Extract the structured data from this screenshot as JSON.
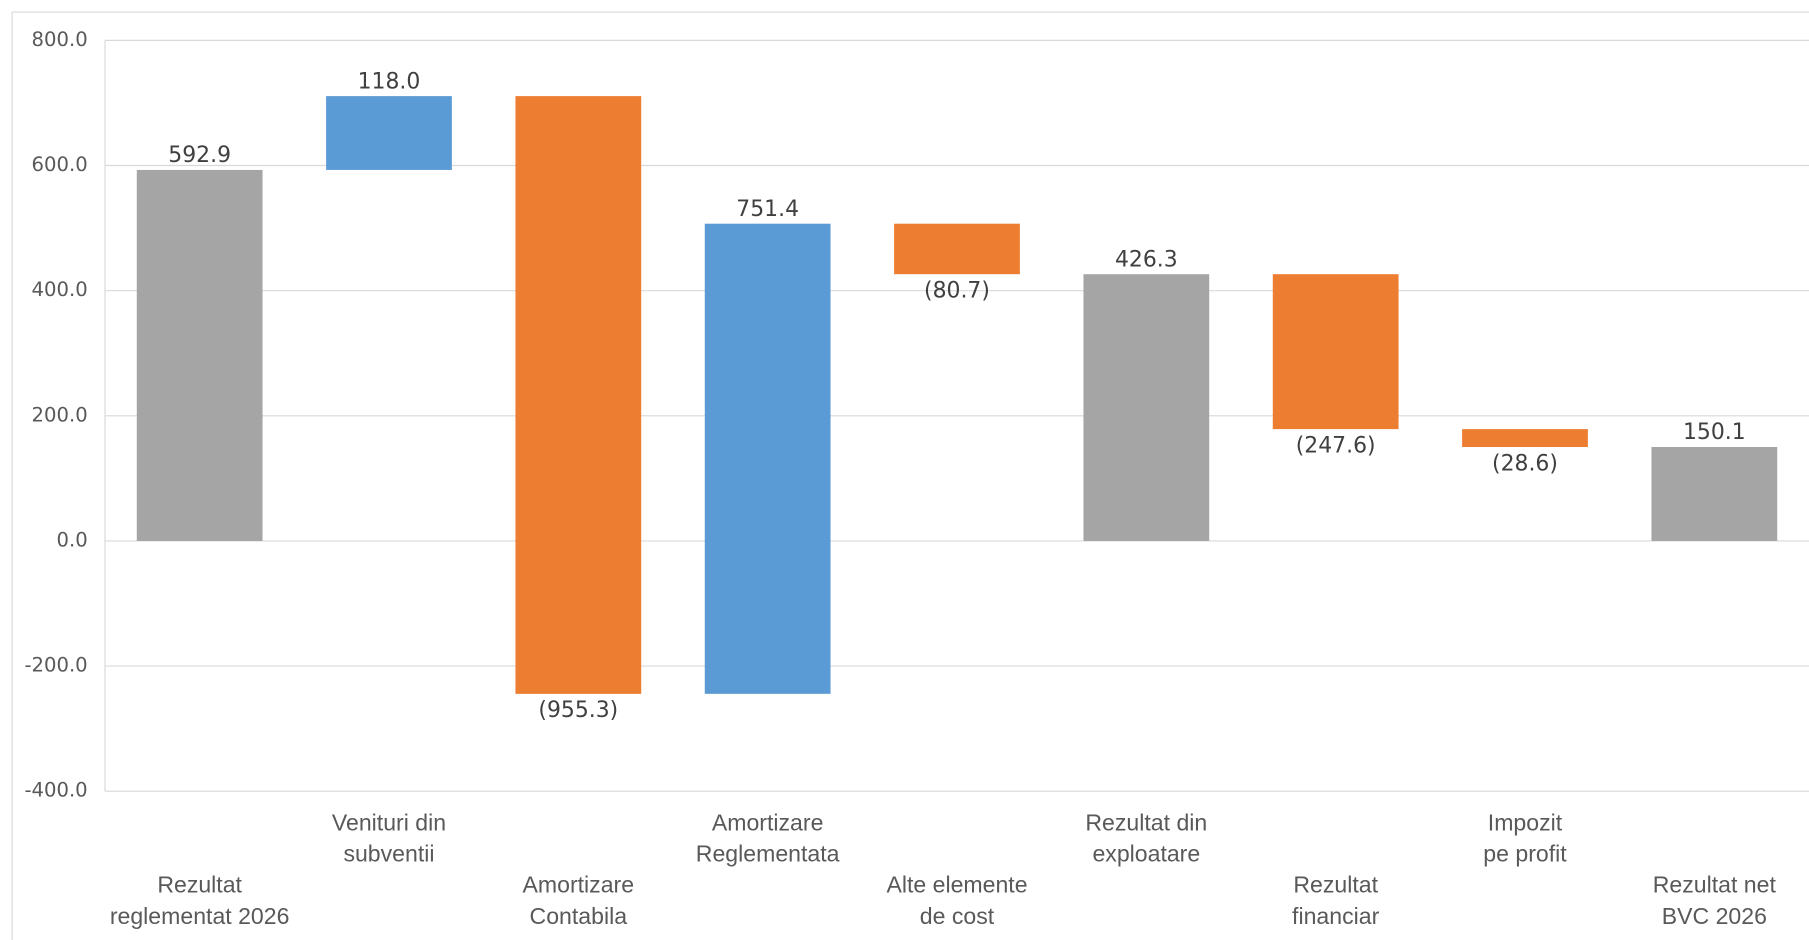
{
  "chart_data": {
    "type": "waterfall",
    "categories": [
      "Rezultat\nreglementat 2026",
      "Venituri din\nsubventii",
      "Amortizare\nContabila",
      "Amortizare\nReglementata",
      "Alte elemente\nde cost",
      "Rezultat din\nexploatare",
      "Rezultat\nfinanciar",
      "Impozit\npe profit",
      "Rezultat net\nBVC 2026"
    ],
    "values": [
      592.9,
      118.0,
      -955.3,
      751.4,
      -80.7,
      426.3,
      -247.6,
      -28.6,
      150.1
    ],
    "value_labels": [
      "592.9",
      "118.0",
      "(955.3)",
      "751.4",
      "(80.7)",
      "426.3",
      "(247.6)",
      "(28.6)",
      "150.1"
    ],
    "measure": [
      "total",
      "relative",
      "relative",
      "relative",
      "relative",
      "total",
      "relative",
      "relative",
      "total"
    ],
    "colors": {
      "increase": "#5b9bd5",
      "decrease": "#ed7d31",
      "total": "#a5a5a5"
    },
    "ylim": [
      -400,
      800
    ],
    "yticks": [
      {
        "value": -400,
        "label": "-400.0"
      },
      {
        "value": -200,
        "label": "-200.0"
      },
      {
        "value": 0,
        "label": "0.0"
      },
      {
        "value": 200,
        "label": "200.0"
      },
      {
        "value": 400,
        "label": "400.0"
      },
      {
        "value": 600,
        "label": "600.0"
      },
      {
        "value": 800,
        "label": "800.0"
      }
    ],
    "grid": true
  }
}
